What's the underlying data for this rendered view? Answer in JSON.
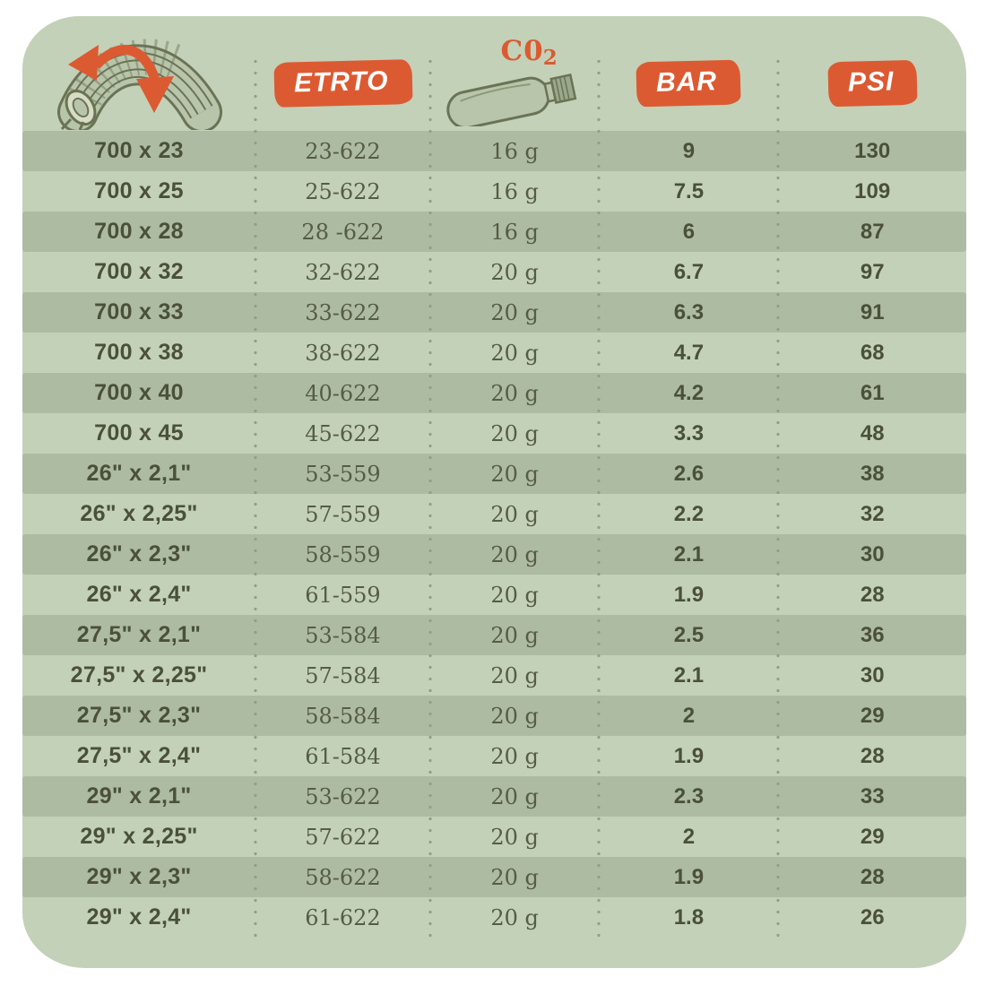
{
  "header": {
    "tire_icon": "tire-rotation-icon",
    "etrto_label": "ETRTO",
    "co2_label": "C0",
    "co2_sub": "2",
    "co2_icon": "co2-cartridge-icon",
    "bar_label": "BAR",
    "psi_label": "PSI"
  },
  "columns": [
    "tire-size",
    "etrto",
    "co2",
    "bar",
    "psi"
  ],
  "rows": [
    {
      "size": "700 x 23",
      "etrto": "23-622",
      "co2": "16 g",
      "bar": "9",
      "psi": "130"
    },
    {
      "size": "700 x 25",
      "etrto": "25-622",
      "co2": "16 g",
      "bar": "7.5",
      "psi": "109"
    },
    {
      "size": "700 x 28",
      "etrto": "28 -622",
      "co2": "16 g",
      "bar": "6",
      "psi": "87"
    },
    {
      "size": "700 x 32",
      "etrto": "32-622",
      "co2": "20 g",
      "bar": "6.7",
      "psi": "97"
    },
    {
      "size": "700 x 33",
      "etrto": "33-622",
      "co2": "20 g",
      "bar": "6.3",
      "psi": "91"
    },
    {
      "size": "700 x 38",
      "etrto": "38-622",
      "co2": "20 g",
      "bar": "4.7",
      "psi": "68"
    },
    {
      "size": "700 x 40",
      "etrto": "40-622",
      "co2": "20 g",
      "bar": "4.2",
      "psi": "61"
    },
    {
      "size": "700 x 45",
      "etrto": "45-622",
      "co2": "20 g",
      "bar": "3.3",
      "psi": "48"
    },
    {
      "size": "26\" x 2,1\"",
      "etrto": "53-559",
      "co2": "20 g",
      "bar": "2.6",
      "psi": "38"
    },
    {
      "size": "26\" x 2,25\"",
      "etrto": "57-559",
      "co2": "20 g",
      "bar": "2.2",
      "psi": "32"
    },
    {
      "size": "26\" x 2,3\"",
      "etrto": "58-559",
      "co2": "20 g",
      "bar": "2.1",
      "psi": "30"
    },
    {
      "size": "26\" x 2,4\"",
      "etrto": "61-559",
      "co2": "20 g",
      "bar": "1.9",
      "psi": "28"
    },
    {
      "size": "27,5\" x 2,1\"",
      "etrto": "53-584",
      "co2": "20 g",
      "bar": "2.5",
      "psi": "36"
    },
    {
      "size": "27,5\" x 2,25\"",
      "etrto": "57-584",
      "co2": "20 g",
      "bar": "2.1",
      "psi": "30"
    },
    {
      "size": "27,5\" x 2,3\"",
      "etrto": "58-584",
      "co2": "20 g",
      "bar": "2",
      "psi": "29"
    },
    {
      "size": "27,5\" x 2,4\"",
      "etrto": "61-584",
      "co2": "20 g",
      "bar": "1.9",
      "psi": "28"
    },
    {
      "size": "29\" x 2,1\"",
      "etrto": "53-622",
      "co2": "20 g",
      "bar": "2.3",
      "psi": "33"
    },
    {
      "size": "29\" x 2,25\"",
      "etrto": "57-622",
      "co2": "20 g",
      "bar": "2",
      "psi": "29"
    },
    {
      "size": "29\" x 2,3\"",
      "etrto": "58-622",
      "co2": "20 g",
      "bar": "1.9",
      "psi": "28"
    },
    {
      "size": "29\" x 2,4\"",
      "etrto": "61-622",
      "co2": "20 g",
      "bar": "1.8",
      "psi": "26"
    }
  ],
  "colors": {
    "accent_orange": "#dc5a32",
    "card_background": "#c3d1b8",
    "row_light": "#ccd9c0",
    "row_dark": "#adbba2",
    "text_dark": "#4a5039",
    "text_mid": "#565c46",
    "icon_outline": "#6b7355",
    "icon_fill": "#b8c5ab",
    "dots": "#90a083",
    "badge_text": "#ffffff",
    "page_background": "#ffffff"
  }
}
